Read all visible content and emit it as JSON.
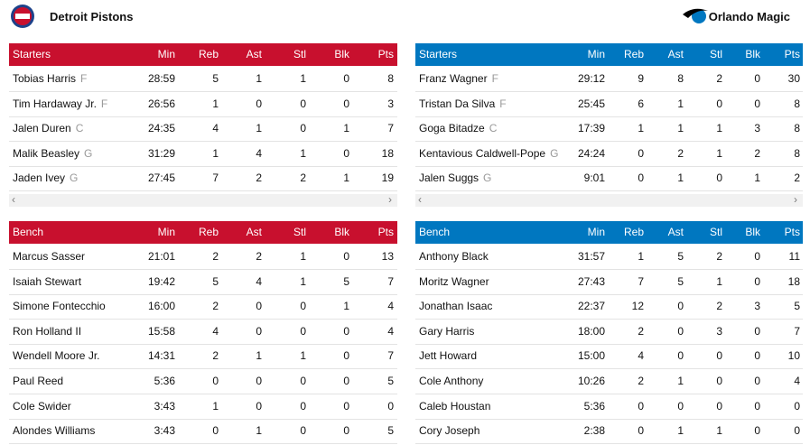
{
  "teams": [
    {
      "name": "Detroit Pistons",
      "color": "#c8102e",
      "starters": {
        "headers": [
          "Starters",
          "Min",
          "Reb",
          "Ast",
          "Stl",
          "Blk",
          "Pts"
        ],
        "rows": [
          {
            "name": "Tobias Harris",
            "pos": "F",
            "stats": [
              "28:59",
              5,
              1,
              1,
              0,
              8
            ]
          },
          {
            "name": "Tim Hardaway Jr.",
            "pos": "F",
            "stats": [
              "26:56",
              1,
              0,
              0,
              0,
              3
            ]
          },
          {
            "name": "Jalen Duren",
            "pos": "C",
            "stats": [
              "24:35",
              4,
              1,
              0,
              1,
              7
            ]
          },
          {
            "name": "Malik Beasley",
            "pos": "G",
            "stats": [
              "31:29",
              1,
              4,
              1,
              0,
              18
            ]
          },
          {
            "name": "Jaden Ivey",
            "pos": "G",
            "stats": [
              "27:45",
              7,
              2,
              2,
              1,
              19
            ]
          }
        ]
      },
      "bench": {
        "headers": [
          "Bench",
          "Min",
          "Reb",
          "Ast",
          "Stl",
          "Blk",
          "Pts"
        ],
        "rows": [
          {
            "name": "Marcus Sasser",
            "stats": [
              "21:01",
              2,
              2,
              1,
              0,
              13
            ]
          },
          {
            "name": "Isaiah Stewart",
            "stats": [
              "19:42",
              5,
              4,
              1,
              5,
              7
            ]
          },
          {
            "name": "Simone Fontecchio",
            "stats": [
              "16:00",
              2,
              0,
              0,
              1,
              4
            ]
          },
          {
            "name": "Ron Holland II",
            "stats": [
              "15:58",
              4,
              0,
              0,
              0,
              4
            ]
          },
          {
            "name": "Wendell Moore Jr.",
            "stats": [
              "14:31",
              2,
              1,
              1,
              0,
              7
            ]
          },
          {
            "name": "Paul Reed",
            "stats": [
              "5:36",
              0,
              0,
              0,
              0,
              5
            ]
          },
          {
            "name": "Cole Swider",
            "stats": [
              "3:43",
              1,
              0,
              0,
              0,
              0
            ]
          },
          {
            "name": "Alondes Williams",
            "stats": [
              "3:43",
              0,
              1,
              0,
              0,
              5
            ]
          }
        ]
      }
    },
    {
      "name": "Orlando Magic",
      "color": "#0077c0",
      "starters": {
        "headers": [
          "Starters",
          "Min",
          "Reb",
          "Ast",
          "Stl",
          "Blk",
          "Pts"
        ],
        "rows": [
          {
            "name": "Franz Wagner",
            "pos": "F",
            "stats": [
              "29:12",
              9,
              8,
              2,
              0,
              30
            ]
          },
          {
            "name": "Tristan Da Silva",
            "pos": "F",
            "stats": [
              "25:45",
              6,
              1,
              0,
              0,
              8
            ]
          },
          {
            "name": "Goga Bitadze",
            "pos": "C",
            "stats": [
              "17:39",
              1,
              1,
              1,
              3,
              8
            ]
          },
          {
            "name": "Kentavious Caldwell-Pope",
            "pos": "G",
            "stats": [
              "24:24",
              0,
              2,
              1,
              2,
              8
            ]
          },
          {
            "name": "Jalen Suggs",
            "pos": "G",
            "stats": [
              "9:01",
              0,
              1,
              0,
              1,
              2
            ]
          }
        ]
      },
      "bench": {
        "headers": [
          "Bench",
          "Min",
          "Reb",
          "Ast",
          "Stl",
          "Blk",
          "Pts"
        ],
        "rows": [
          {
            "name": "Anthony Black",
            "stats": [
              "31:57",
              1,
              5,
              2,
              0,
              11
            ]
          },
          {
            "name": "Moritz Wagner",
            "stats": [
              "27:43",
              7,
              5,
              1,
              0,
              18
            ]
          },
          {
            "name": "Jonathan Isaac",
            "stats": [
              "22:37",
              12,
              0,
              2,
              3,
              5
            ]
          },
          {
            "name": "Gary Harris",
            "stats": [
              "18:00",
              2,
              0,
              3,
              0,
              7
            ]
          },
          {
            "name": "Jett Howard",
            "stats": [
              "15:00",
              4,
              0,
              0,
              0,
              10
            ]
          },
          {
            "name": "Cole Anthony",
            "stats": [
              "10:26",
              2,
              1,
              0,
              0,
              4
            ]
          },
          {
            "name": "Caleb Houstan",
            "stats": [
              "5:36",
              0,
              0,
              0,
              0,
              0
            ]
          },
          {
            "name": "Cory Joseph",
            "stats": [
              "2:38",
              0,
              1,
              1,
              0,
              0
            ]
          }
        ]
      }
    }
  ]
}
